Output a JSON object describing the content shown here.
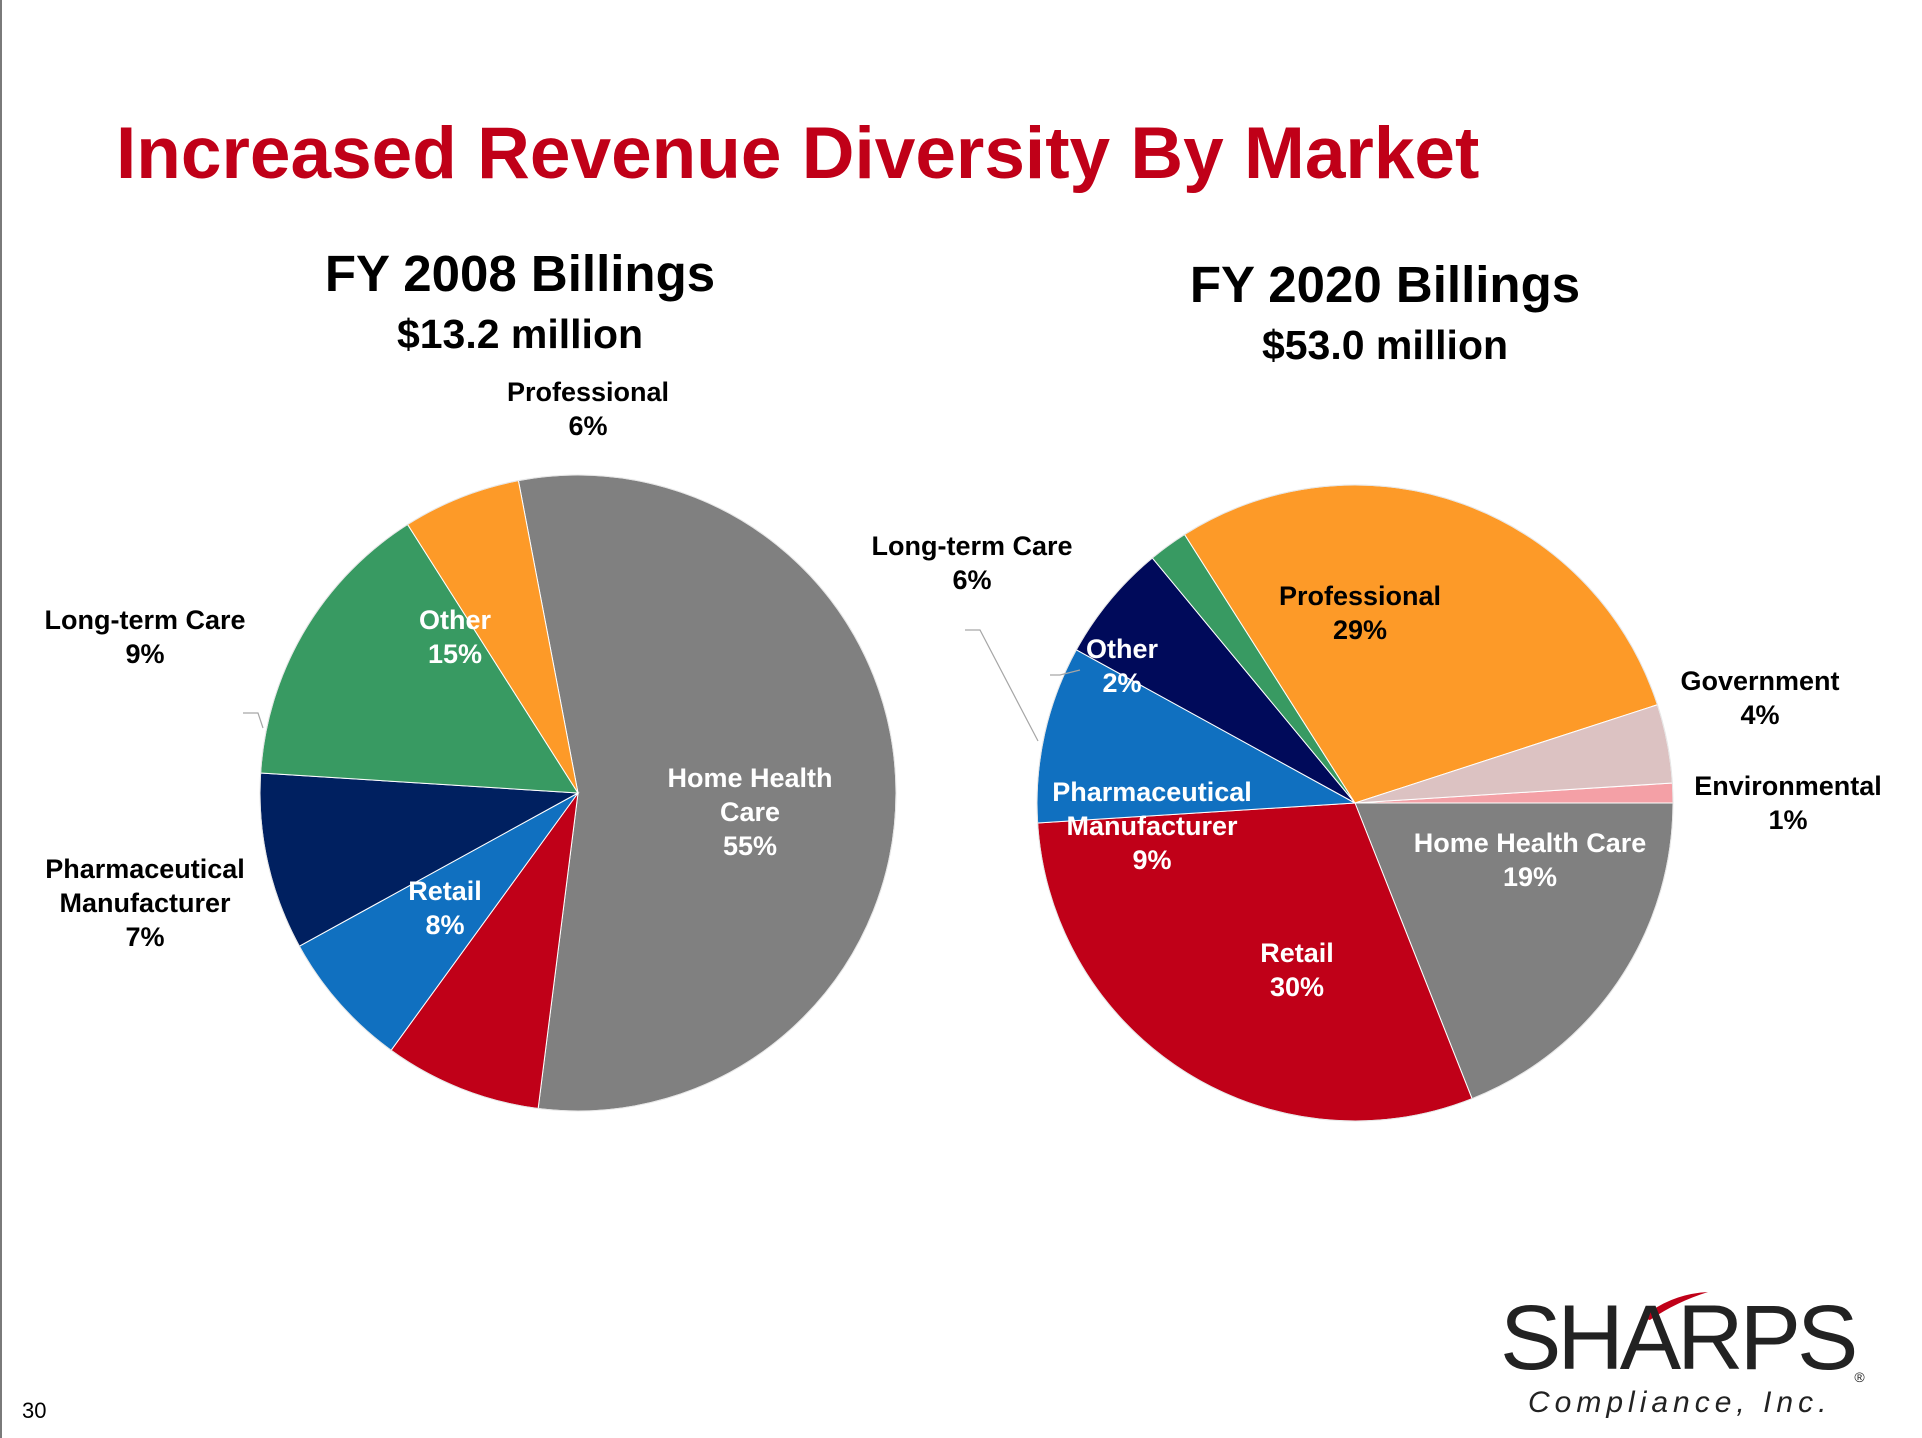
{
  "slide": {
    "title": "Increased Revenue Diversity By Market",
    "page_number": "30"
  },
  "logo": {
    "main": "SHARPS",
    "registered": "®",
    "sub": "Compliance, Inc."
  },
  "colors": {
    "title": "#c00018",
    "Home Health Care": "#808080",
    "Retail": "#c00018",
    "Pharmaceutical Manufacturer": "#1070c0",
    "Long-term Care 2008": "#002060",
    "Long-term Care 2020": "#000a5a",
    "Other": "#389a62",
    "Professional": "#fd9a28",
    "Government": "#dcc2c2",
    "Environmental": "#f4a0a6"
  },
  "chart_data": [
    {
      "type": "pie",
      "title": "FY 2008 Billings",
      "subtitle": "$13.2 million",
      "slices": [
        {
          "label": "Home Health Care",
          "value": 55,
          "display": [
            "Home Health",
            "Care",
            "55%"
          ],
          "color": "#808080"
        },
        {
          "label": "Retail",
          "value": 8,
          "display": [
            "Retail",
            "8%"
          ],
          "color": "#c00018"
        },
        {
          "label": "Pharmaceutical Manufacturer",
          "value": 7,
          "display": [
            "Pharmaceutical",
            "Manufacturer",
            "7%"
          ],
          "color": "#1070c0"
        },
        {
          "label": "Long-term Care",
          "value": 9,
          "display": [
            "Long-term Care",
            "9%"
          ],
          "color": "#002060"
        },
        {
          "label": "Other",
          "value": 15,
          "display": [
            "Other",
            "15%"
          ],
          "color": "#389a62"
        },
        {
          "label": "Professional",
          "value": 6,
          "display": [
            "Professional",
            "6%"
          ],
          "color": "#fd9a28"
        }
      ]
    },
    {
      "type": "pie",
      "title": "FY 2020 Billings",
      "subtitle": "$53.0 million",
      "slices": [
        {
          "label": "Environmental",
          "value": 1,
          "display": [
            "Environmental",
            "1%"
          ],
          "color": "#f4a0a6"
        },
        {
          "label": "Home Health Care",
          "value": 19,
          "display": [
            "Home Health Care",
            "19%"
          ],
          "color": "#808080"
        },
        {
          "label": "Retail",
          "value": 30,
          "display": [
            "Retail",
            "30%"
          ],
          "color": "#c00018"
        },
        {
          "label": "Pharmaceutical Manufacturer",
          "value": 9,
          "display": [
            "Pharmaceutical",
            "Manufacturer",
            "9%"
          ],
          "color": "#1070c0"
        },
        {
          "label": "Long-term Care",
          "value": 6,
          "display": [
            "Long-term Care",
            "6%"
          ],
          "color": "#000a5a"
        },
        {
          "label": "Other",
          "value": 2,
          "display": [
            "Other",
            "2%"
          ],
          "color": "#389a62"
        },
        {
          "label": "Professional",
          "value": 29,
          "display": [
            "Professional",
            "29%"
          ],
          "color": "#fd9a28"
        },
        {
          "label": "Government",
          "value": 4,
          "display": [
            "Government",
            "4%"
          ],
          "color": "#dcc2c2"
        }
      ]
    }
  ]
}
